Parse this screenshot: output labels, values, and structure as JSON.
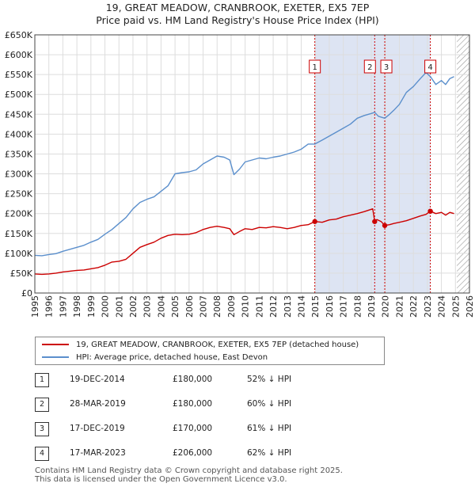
{
  "title": {
    "line1": "19, GREAT MEADOW, CRANBROOK, EXETER, EX5 7EP",
    "line2": "Price paid vs. HM Land Registry's House Price Index (HPI)"
  },
  "colors": {
    "property_line": "#cc0000",
    "hpi_line": "#5b8fcc",
    "shade": "#dde4f3",
    "marker_line": "#cc0000",
    "grid": "#dddddd"
  },
  "legend": {
    "property_label": "19, GREAT MEADOW, CRANBROOK, EXETER, EX5 7EP (detached house)",
    "hpi_label": "HPI: Average price, detached house, East Devon"
  },
  "transactions": [
    {
      "num": "1",
      "date": "19-DEC-2014",
      "price": "£180,000",
      "hpi": "52% ↓ HPI"
    },
    {
      "num": "2",
      "date": "28-MAR-2019",
      "price": "£180,000",
      "hpi": "60% ↓ HPI"
    },
    {
      "num": "3",
      "date": "17-DEC-2019",
      "price": "£170,000",
      "hpi": "61% ↓ HPI"
    },
    {
      "num": "4",
      "date": "17-MAR-2023",
      "price": "£206,000",
      "hpi": "62% ↓ HPI"
    }
  ],
  "footer": {
    "line1": "Contains HM Land Registry data © Crown copyright and database right 2025.",
    "line2": "This data is licensed under the Open Government Licence v3.0."
  },
  "chart_data": {
    "type": "line",
    "title": "Price paid vs. HM Land Registry's House Price Index (HPI)",
    "xlabel": "",
    "ylabel": "",
    "xlim": [
      1995,
      2026
    ],
    "ylim": [
      0,
      650000
    ],
    "x_ticks": [
      1995,
      1996,
      1997,
      1998,
      1999,
      2000,
      2001,
      2002,
      2003,
      2004,
      2005,
      2006,
      2007,
      2008,
      2009,
      2010,
      2011,
      2012,
      2013,
      2014,
      2015,
      2016,
      2017,
      2018,
      2019,
      2020,
      2021,
      2022,
      2023,
      2024,
      2025,
      2026
    ],
    "y_ticks": [
      0,
      50000,
      100000,
      150000,
      200000,
      250000,
      300000,
      350000,
      400000,
      450000,
      500000,
      550000,
      600000,
      650000
    ],
    "y_tick_labels": [
      "£0",
      "£50K",
      "£100K",
      "£150K",
      "£200K",
      "£250K",
      "£300K",
      "£350K",
      "£400K",
      "£450K",
      "£500K",
      "£550K",
      "£600K",
      "£650K"
    ],
    "grid": true,
    "shaded_span": [
      2014.97,
      2023.21
    ],
    "future_hatch_start": 2025.1,
    "series": [
      {
        "name": "19, GREAT MEADOW, CRANBROOK, EXETER, EX5 7EP (detached house)",
        "color": "#cc0000",
        "x": [
          1995.0,
          1995.5,
          1996.0,
          1996.5,
          1997.0,
          1997.5,
          1998.0,
          1998.5,
          1999.0,
          1999.5,
          2000.0,
          2000.5,
          2001.0,
          2001.5,
          2002.0,
          2002.5,
          2003.0,
          2003.5,
          2004.0,
          2004.5,
          2005.0,
          2005.5,
          2006.0,
          2006.5,
          2007.0,
          2007.5,
          2008.0,
          2008.5,
          2008.9,
          2009.2,
          2009.6,
          2010.0,
          2010.5,
          2011.0,
          2011.5,
          2012.0,
          2012.5,
          2013.0,
          2013.5,
          2014.0,
          2014.5,
          2014.97,
          2015.5,
          2016.0,
          2016.5,
          2017.0,
          2017.5,
          2018.0,
          2018.5,
          2019.1,
          2019.24,
          2019.4,
          2019.7,
          2019.96,
          2020.3,
          2020.6,
          2021.0,
          2021.5,
          2022.0,
          2022.5,
          2022.9,
          2023.21,
          2023.6,
          2024.0,
          2024.3,
          2024.6,
          2024.9
        ],
        "values": [
          48000,
          47000,
          48000,
          50000,
          53000,
          55000,
          57000,
          58000,
          61000,
          64000,
          70000,
          78000,
          80000,
          85000,
          100000,
          115000,
          122000,
          128000,
          138000,
          145000,
          148000,
          147000,
          148000,
          152000,
          160000,
          165000,
          168000,
          165000,
          162000,
          147000,
          155000,
          162000,
          160000,
          165000,
          164000,
          167000,
          165000,
          162000,
          165000,
          170000,
          172000,
          180000,
          178000,
          184000,
          186000,
          192000,
          196000,
          200000,
          205000,
          212000,
          180000,
          185000,
          180000,
          170000,
          172000,
          175000,
          178000,
          182000,
          188000,
          194000,
          198000,
          206000,
          200000,
          203000,
          196000,
          203000,
          200000
        ]
      },
      {
        "name": "HPI: Average price, detached house, East Devon",
        "color": "#5b8fcc",
        "x": [
          1995.0,
          1995.5,
          1996.0,
          1996.5,
          1997.0,
          1997.5,
          1998.0,
          1998.5,
          1999.0,
          1999.5,
          2000.0,
          2000.5,
          2001.0,
          2001.5,
          2002.0,
          2002.5,
          2003.0,
          2003.5,
          2004.0,
          2004.5,
          2005.0,
          2005.5,
          2006.0,
          2006.5,
          2007.0,
          2007.5,
          2008.0,
          2008.5,
          2008.9,
          2009.2,
          2009.6,
          2010.0,
          2010.5,
          2011.0,
          2011.5,
          2012.0,
          2012.5,
          2013.0,
          2013.5,
          2014.0,
          2014.5,
          2014.97,
          2015.5,
          2016.0,
          2016.5,
          2017.0,
          2017.5,
          2018.0,
          2018.5,
          2019.0,
          2019.24,
          2019.5,
          2019.96,
          2020.3,
          2020.6,
          2021.0,
          2021.5,
          2022.0,
          2022.5,
          2022.9,
          2023.21,
          2023.6,
          2024.0,
          2024.3,
          2024.6,
          2024.9
        ],
        "values": [
          95000,
          94000,
          97000,
          99000,
          105000,
          110000,
          115000,
          120000,
          128000,
          135000,
          148000,
          160000,
          175000,
          190000,
          212000,
          228000,
          236000,
          242000,
          256000,
          270000,
          300000,
          303000,
          305000,
          310000,
          325000,
          335000,
          345000,
          342000,
          335000,
          298000,
          312000,
          330000,
          335000,
          340000,
          338000,
          342000,
          345000,
          350000,
          355000,
          362000,
          375000,
          375000,
          385000,
          395000,
          405000,
          415000,
          425000,
          440000,
          447000,
          452000,
          455000,
          445000,
          440000,
          450000,
          460000,
          475000,
          505000,
          520000,
          540000,
          555000,
          545000,
          525000,
          535000,
          525000,
          540000,
          545000
        ]
      }
    ],
    "markers": [
      {
        "label": "1",
        "x": 2014.97,
        "y": 180000
      },
      {
        "label": "2",
        "x": 2019.24,
        "y": 180000
      },
      {
        "label": "3",
        "x": 2019.96,
        "y": 170000
      },
      {
        "label": "4",
        "x": 2023.21,
        "y": 206000
      }
    ]
  }
}
